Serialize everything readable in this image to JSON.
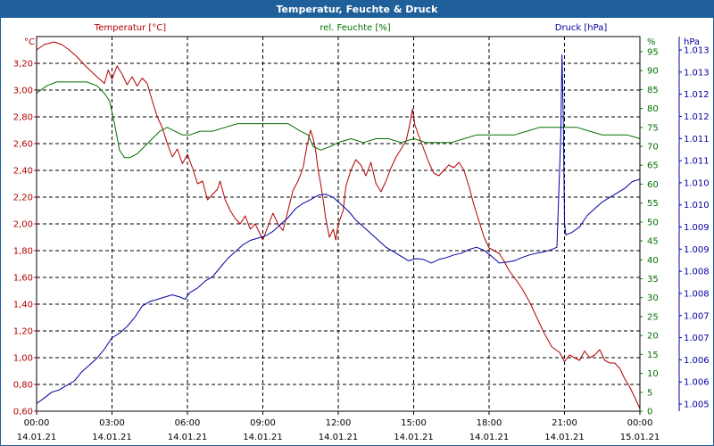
{
  "window": {
    "title": "Temperatur, Feuchte & Druck"
  },
  "chart_data": {
    "type": "line",
    "title": "Temperatur, Feuchte & Druck",
    "grid": true,
    "x_ticks": [
      {
        "time": "00:00",
        "date": "14.01.21"
      },
      {
        "time": "03:00",
        "date": "14.01.21"
      },
      {
        "time": "06:00",
        "date": "14.01.21"
      },
      {
        "time": "09:00",
        "date": "14.01.21"
      },
      {
        "time": "12:00",
        "date": "14.01.21"
      },
      {
        "time": "15:00",
        "date": "14.01.21"
      },
      {
        "time": "18:00",
        "date": "14.01.21"
      },
      {
        "time": "21:00",
        "date": "14.01.21"
      },
      {
        "time": "00:00",
        "date": "15.01.21"
      }
    ],
    "x_range_hours": [
      0,
      24
    ],
    "axes": {
      "temperature": {
        "label": "Temperatur [°C]",
        "unit": "°C",
        "color": "#b00000",
        "range": [
          0.6,
          3.4
        ],
        "tick_labels": [
          "0,60",
          "0,80",
          "1,00",
          "1,20",
          "1,40",
          "1,60",
          "1,80",
          "2,00",
          "2,20",
          "2,40",
          "2,60",
          "2,80",
          "3,00",
          "3,20"
        ],
        "tick_values": [
          0.6,
          0.8,
          1.0,
          1.2,
          1.4,
          1.6,
          1.8,
          2.0,
          2.2,
          2.4,
          2.6,
          2.8,
          3.0,
          3.2
        ]
      },
      "humidity": {
        "label": "rel. Feuchte [%]",
        "unit": "%",
        "color": "#007000",
        "range": [
          0,
          99
        ],
        "tick_labels": [
          "0",
          "5",
          "10",
          "15",
          "20",
          "25",
          "30",
          "35",
          "40",
          "45",
          "50",
          "55",
          "60",
          "65",
          "70",
          "75",
          "80",
          "85",
          "90",
          "95"
        ],
        "tick_values": [
          0,
          5,
          10,
          15,
          20,
          25,
          30,
          35,
          40,
          45,
          50,
          55,
          60,
          65,
          70,
          75,
          80,
          85,
          90,
          95
        ]
      },
      "pressure": {
        "label": "Druck [hPa]",
        "unit": "hPa",
        "color": "#0000a0",
        "range": [
          1004.93,
          1013.2
        ],
        "tick_labels": [
          "1.005",
          "1.006",
          "1.006",
          "1.007",
          "1.007",
          "1.008",
          "1.008",
          "1.009",
          "1.009",
          "1.010",
          "1.010",
          "1.011",
          "1.011",
          "1.012",
          "1.012",
          "1.013",
          "1.013"
        ]
      }
    },
    "series": [
      {
        "name": "Temperatur [°C]",
        "axis": "temperature",
        "color": "#b00000",
        "points": [
          [
            0,
            3.3
          ],
          [
            0.3,
            3.34
          ],
          [
            0.7,
            3.36
          ],
          [
            1.0,
            3.34
          ],
          [
            1.3,
            3.3
          ],
          [
            1.6,
            3.25
          ],
          [
            2.0,
            3.17
          ],
          [
            2.4,
            3.1
          ],
          [
            2.7,
            3.05
          ],
          [
            2.85,
            3.15
          ],
          [
            3.0,
            3.08
          ],
          [
            3.2,
            3.18
          ],
          [
            3.4,
            3.12
          ],
          [
            3.6,
            3.04
          ],
          [
            3.8,
            3.1
          ],
          [
            4.0,
            3.03
          ],
          [
            4.2,
            3.09
          ],
          [
            4.4,
            3.05
          ],
          [
            4.6,
            2.92
          ],
          [
            4.8,
            2.8
          ],
          [
            5.0,
            2.72
          ],
          [
            5.2,
            2.6
          ],
          [
            5.4,
            2.5
          ],
          [
            5.6,
            2.56
          ],
          [
            5.8,
            2.45
          ],
          [
            6.0,
            2.52
          ],
          [
            6.2,
            2.42
          ],
          [
            6.4,
            2.3
          ],
          [
            6.6,
            2.32
          ],
          [
            6.8,
            2.18
          ],
          [
            7.0,
            2.22
          ],
          [
            7.2,
            2.26
          ],
          [
            7.3,
            2.32
          ],
          [
            7.5,
            2.18
          ],
          [
            7.7,
            2.1
          ],
          [
            7.9,
            2.04
          ],
          [
            8.1,
            2.0
          ],
          [
            8.3,
            2.06
          ],
          [
            8.5,
            1.96
          ],
          [
            8.7,
            2.0
          ],
          [
            8.9,
            1.92
          ],
          [
            9.0,
            1.88
          ],
          [
            9.2,
            1.98
          ],
          [
            9.4,
            2.08
          ],
          [
            9.6,
            2.0
          ],
          [
            9.8,
            1.95
          ],
          [
            10.0,
            2.1
          ],
          [
            10.2,
            2.25
          ],
          [
            10.4,
            2.32
          ],
          [
            10.6,
            2.42
          ],
          [
            10.75,
            2.58
          ],
          [
            10.9,
            2.7
          ],
          [
            11.0,
            2.64
          ],
          [
            11.1,
            2.55
          ],
          [
            11.2,
            2.4
          ],
          [
            11.3,
            2.3
          ],
          [
            11.4,
            2.18
          ],
          [
            11.5,
            2.04
          ],
          [
            11.65,
            1.9
          ],
          [
            11.8,
            1.96
          ],
          [
            11.9,
            1.88
          ],
          [
            12.0,
            2.0
          ],
          [
            12.2,
            2.1
          ],
          [
            12.3,
            2.28
          ],
          [
            12.5,
            2.4
          ],
          [
            12.7,
            2.48
          ],
          [
            12.9,
            2.44
          ],
          [
            13.1,
            2.36
          ],
          [
            13.3,
            2.46
          ],
          [
            13.5,
            2.3
          ],
          [
            13.7,
            2.24
          ],
          [
            13.9,
            2.32
          ],
          [
            14.1,
            2.42
          ],
          [
            14.3,
            2.5
          ],
          [
            14.5,
            2.56
          ],
          [
            14.7,
            2.62
          ],
          [
            14.85,
            2.75
          ],
          [
            14.95,
            2.86
          ],
          [
            15.05,
            2.74
          ],
          [
            15.2,
            2.66
          ],
          [
            15.4,
            2.56
          ],
          [
            15.6,
            2.46
          ],
          [
            15.8,
            2.38
          ],
          [
            16.0,
            2.36
          ],
          [
            16.2,
            2.4
          ],
          [
            16.4,
            2.44
          ],
          [
            16.6,
            2.42
          ],
          [
            16.8,
            2.46
          ],
          [
            17.0,
            2.4
          ],
          [
            17.2,
            2.28
          ],
          [
            17.4,
            2.14
          ],
          [
            17.6,
            2.02
          ],
          [
            17.8,
            1.9
          ],
          [
            18.0,
            1.82
          ],
          [
            18.2,
            1.8
          ],
          [
            18.4,
            1.78
          ],
          [
            18.6,
            1.72
          ],
          [
            18.8,
            1.65
          ],
          [
            19.0,
            1.6
          ],
          [
            19.3,
            1.52
          ],
          [
            19.6,
            1.42
          ],
          [
            19.9,
            1.3
          ],
          [
            20.2,
            1.18
          ],
          [
            20.5,
            1.08
          ],
          [
            20.8,
            1.04
          ],
          [
            21.0,
            0.97
          ],
          [
            21.2,
            1.02
          ],
          [
            21.4,
            1.0
          ],
          [
            21.6,
            0.98
          ],
          [
            21.8,
            1.05
          ],
          [
            22.0,
            1.0
          ],
          [
            22.2,
            1.02
          ],
          [
            22.4,
            1.06
          ],
          [
            22.6,
            0.98
          ],
          [
            22.8,
            0.96
          ],
          [
            23.0,
            0.96
          ],
          [
            23.2,
            0.92
          ],
          [
            23.4,
            0.84
          ],
          [
            23.6,
            0.78
          ],
          [
            23.8,
            0.7
          ],
          [
            24.0,
            0.62
          ]
        ]
      },
      {
        "name": "rel. Feuchte [%]",
        "axis": "humidity",
        "color": "#007000",
        "points": [
          [
            0,
            84
          ],
          [
            0.4,
            86
          ],
          [
            0.8,
            87
          ],
          [
            1.2,
            87
          ],
          [
            1.6,
            87
          ],
          [
            2.0,
            87
          ],
          [
            2.4,
            86
          ],
          [
            2.7,
            84
          ],
          [
            2.9,
            82
          ],
          [
            3.1,
            76
          ],
          [
            3.3,
            69
          ],
          [
            3.5,
            67
          ],
          [
            3.7,
            67
          ],
          [
            4.0,
            68
          ],
          [
            4.3,
            70
          ],
          [
            4.6,
            72
          ],
          [
            4.9,
            74
          ],
          [
            5.2,
            75
          ],
          [
            5.5,
            74
          ],
          [
            5.8,
            73
          ],
          [
            6.1,
            73
          ],
          [
            6.5,
            74
          ],
          [
            7.0,
            74
          ],
          [
            7.5,
            75
          ],
          [
            8.0,
            76
          ],
          [
            8.5,
            76
          ],
          [
            9.0,
            76
          ],
          [
            9.5,
            76
          ],
          [
            10.0,
            76
          ],
          [
            10.5,
            74
          ],
          [
            10.8,
            73
          ],
          [
            11.0,
            70
          ],
          [
            11.3,
            69
          ],
          [
            11.7,
            70
          ],
          [
            12.0,
            71
          ],
          [
            12.5,
            72
          ],
          [
            13.0,
            71
          ],
          [
            13.5,
            72
          ],
          [
            14.0,
            72
          ],
          [
            14.5,
            71
          ],
          [
            15.0,
            72
          ],
          [
            15.5,
            71
          ],
          [
            16.0,
            71
          ],
          [
            16.5,
            71
          ],
          [
            17.0,
            72
          ],
          [
            17.5,
            73
          ],
          [
            18.0,
            73
          ],
          [
            18.5,
            73
          ],
          [
            19.0,
            73
          ],
          [
            19.5,
            74
          ],
          [
            20.0,
            75
          ],
          [
            20.5,
            75
          ],
          [
            21.0,
            75
          ],
          [
            21.5,
            75
          ],
          [
            22.0,
            74
          ],
          [
            22.5,
            73
          ],
          [
            23.0,
            73
          ],
          [
            23.5,
            73
          ],
          [
            24.0,
            72
          ]
        ]
      },
      {
        "name": "Druck [hPa]",
        "axis": "pressure",
        "color": "#0000a0",
        "points": [
          [
            0,
            1005.1
          ],
          [
            0.3,
            1005.22
          ],
          [
            0.6,
            1005.35
          ],
          [
            0.9,
            1005.4
          ],
          [
            1.2,
            1005.5
          ],
          [
            1.5,
            1005.6
          ],
          [
            1.8,
            1005.8
          ],
          [
            2.1,
            1005.95
          ],
          [
            2.4,
            1006.1
          ],
          [
            2.7,
            1006.3
          ],
          [
            3.0,
            1006.55
          ],
          [
            3.3,
            1006.65
          ],
          [
            3.6,
            1006.8
          ],
          [
            3.9,
            1007.0
          ],
          [
            4.2,
            1007.25
          ],
          [
            4.5,
            1007.35
          ],
          [
            4.8,
            1007.4
          ],
          [
            5.1,
            1007.45
          ],
          [
            5.4,
            1007.5
          ],
          [
            5.7,
            1007.45
          ],
          [
            5.9,
            1007.4
          ],
          [
            6.1,
            1007.55
          ],
          [
            6.4,
            1007.65
          ],
          [
            6.7,
            1007.8
          ],
          [
            7.0,
            1007.9
          ],
          [
            7.3,
            1008.1
          ],
          [
            7.6,
            1008.3
          ],
          [
            7.9,
            1008.45
          ],
          [
            8.2,
            1008.6
          ],
          [
            8.5,
            1008.7
          ],
          [
            8.8,
            1008.75
          ],
          [
            9.1,
            1008.8
          ],
          [
            9.4,
            1008.9
          ],
          [
            9.7,
            1009.05
          ],
          [
            10.0,
            1009.2
          ],
          [
            10.3,
            1009.4
          ],
          [
            10.6,
            1009.52
          ],
          [
            10.9,
            1009.6
          ],
          [
            11.2,
            1009.7
          ],
          [
            11.5,
            1009.72
          ],
          [
            11.8,
            1009.65
          ],
          [
            12.1,
            1009.5
          ],
          [
            12.4,
            1009.35
          ],
          [
            12.7,
            1009.15
          ],
          [
            13.0,
            1009.0
          ],
          [
            13.3,
            1008.85
          ],
          [
            13.6,
            1008.7
          ],
          [
            13.9,
            1008.55
          ],
          [
            14.2,
            1008.45
          ],
          [
            14.5,
            1008.35
          ],
          [
            14.8,
            1008.25
          ],
          [
            15.1,
            1008.3
          ],
          [
            15.4,
            1008.28
          ],
          [
            15.7,
            1008.2
          ],
          [
            16.0,
            1008.28
          ],
          [
            16.3,
            1008.32
          ],
          [
            16.6,
            1008.38
          ],
          [
            16.9,
            1008.42
          ],
          [
            17.2,
            1008.5
          ],
          [
            17.5,
            1008.55
          ],
          [
            17.8,
            1008.48
          ],
          [
            18.1,
            1008.35
          ],
          [
            18.4,
            1008.2
          ],
          [
            18.7,
            1008.22
          ],
          [
            19.0,
            1008.25
          ],
          [
            19.3,
            1008.32
          ],
          [
            19.6,
            1008.38
          ],
          [
            19.9,
            1008.42
          ],
          [
            20.2,
            1008.45
          ],
          [
            20.5,
            1008.5
          ],
          [
            20.7,
            1008.55
          ],
          [
            20.85,
            1011.0
          ],
          [
            20.9,
            1012.8
          ],
          [
            20.95,
            1011.5
          ],
          [
            21.0,
            1009.1
          ],
          [
            21.05,
            1008.82
          ],
          [
            21.3,
            1008.88
          ],
          [
            21.6,
            1009.0
          ],
          [
            21.9,
            1009.25
          ],
          [
            22.2,
            1009.4
          ],
          [
            22.5,
            1009.55
          ],
          [
            22.8,
            1009.65
          ],
          [
            23.1,
            1009.75
          ],
          [
            23.4,
            1009.85
          ],
          [
            23.7,
            1010.0
          ],
          [
            24.0,
            1010.05
          ]
        ]
      }
    ]
  }
}
